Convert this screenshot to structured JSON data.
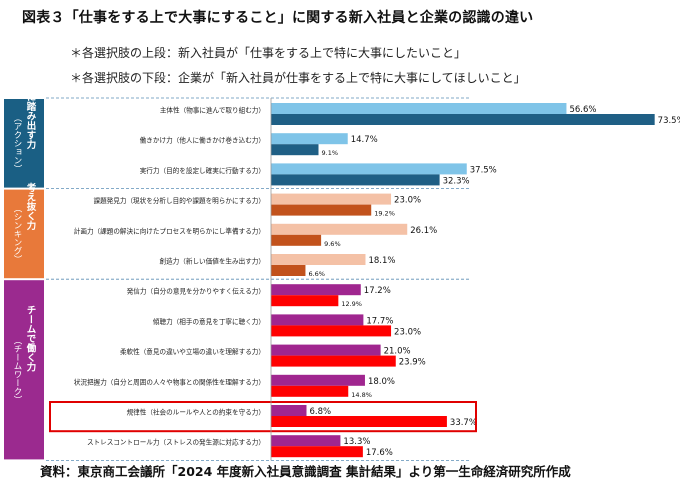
{
  "title": "図表３「仕事をする上で大事にすること」に関する新入社員と企業の認識の違い",
  "notes": [
    "＊各選択肢の上段：新入社員が「仕事をする上で特に大事にしたいこと」",
    "＊各選択肢の下段：企業が「新入社員が仕事をする上で特に大事にしてほしいこと」"
  ],
  "source": "資料：東京商工会議所「2024 年度新入社員意識調査 集計結果」より第一生命経済研究所作成",
  "colors": {
    "group1_top": "#7fc4e8",
    "group1_bottom": "#1f5f85",
    "group2_top": "#f4c1a6",
    "group2_bottom": "#c2521c",
    "group3_top": "#a0268f",
    "group3_bottom": "#ff0000",
    "group1_band": "#1a5f84",
    "group2_band": "#e8793a",
    "group3_band": "#9b2a8f",
    "highlight_box": "#e00000"
  },
  "chart_data": {
    "type": "bar",
    "orientation": "horizontal",
    "value_unit": "%",
    "xlim": [
      0,
      80
    ],
    "grid": false,
    "groups": [
      {
        "name": "前に踏み出す力",
        "sub": "（アクション）",
        "color_key": "group1",
        "items": [
          {
            "label": "主体性（物事に進んで取り組む力）",
            "new_employee": 56.6,
            "company": 73.5
          },
          {
            "label": "働きかけ力（他人に働きかけ巻き込む力）",
            "new_employee": 14.7,
            "company": 9.1
          },
          {
            "label": "実行力（目的を設定し確実に行動する力）",
            "new_employee": 37.5,
            "company": 32.3
          }
        ]
      },
      {
        "name": "考え抜く力",
        "sub": "（シンキング）",
        "color_key": "group2",
        "items": [
          {
            "label": "課題発見力（現状を分析し目的や課題を明らかにする力）",
            "new_employee": 23.0,
            "company": 19.2
          },
          {
            "label": "計画力（課題の解決に向けたプロセスを明らかにし準備する力）",
            "new_employee": 26.1,
            "company": 9.6
          },
          {
            "label": "創造力（新しい価値を生み出す力）",
            "new_employee": 18.1,
            "company": 6.6
          }
        ]
      },
      {
        "name": "チームで働く力",
        "sub": "（チームワーク）",
        "color_key": "group3",
        "items": [
          {
            "label": "発信力（自分の意見を分かりやすく伝える力）",
            "new_employee": 17.2,
            "company": 12.9
          },
          {
            "label": "傾聴力（相手の意見を丁寧に聴く力）",
            "new_employee": 17.7,
            "company": 23.0
          },
          {
            "label": "柔軟性（意見の違いや立場の違いを理解する力）",
            "new_employee": 21.0,
            "company": 23.9
          },
          {
            "label": "状況把握力（自分と周囲の人々や物事との関係性を理解する力）",
            "new_employee": 18.0,
            "company": 14.8
          },
          {
            "label": "規律性（社会のルールや人との約束を守る力）",
            "new_employee": 6.8,
            "company": 33.7,
            "highlighted": true
          },
          {
            "label": "ストレスコントロール力（ストレスの発生源に対応する力）",
            "new_employee": 13.3,
            "company": 17.6
          }
        ]
      }
    ]
  }
}
